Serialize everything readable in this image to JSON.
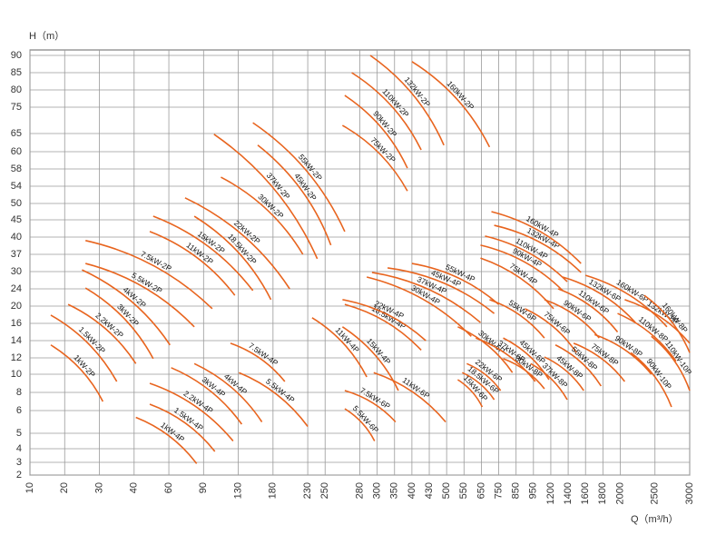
{
  "chart_data": {
    "type": "line",
    "y_label": "H（m）",
    "x_label": "Q（m³/h）",
    "color": "#e8641e",
    "grid": true,
    "xlim": [
      10,
      3000
    ],
    "ylim": [
      2,
      90
    ],
    "xticks": [
      10,
      20,
      30,
      40,
      60,
      90,
      130,
      180,
      230,
      250,
      280,
      300,
      350,
      400,
      430,
      500,
      550,
      650,
      750,
      850,
      950,
      1200,
      1400,
      1600,
      1800,
      2000,
      2500,
      3000
    ],
    "yticks": [
      2,
      3,
      4,
      5,
      6,
      8,
      10,
      12,
      14,
      16,
      20,
      24,
      30,
      37,
      40,
      45,
      50,
      54,
      58,
      60,
      65,
      75,
      80,
      85,
      90
    ],
    "series": [
      {
        "name": "1kW-2P",
        "x": [
          16,
          31
        ],
        "values": [
          13.5,
          7
        ]
      },
      {
        "name": "1.5kW-2P",
        "x": [
          16,
          35
        ],
        "values": [
          17.9,
          9.2
        ]
      },
      {
        "name": "2.2kW-2P",
        "x": [
          21,
          41
        ],
        "values": [
          20.4,
          11.3
        ]
      },
      {
        "name": "3kW-2P",
        "x": [
          26,
          51
        ],
        "values": [
          24.3,
          11.9
        ]
      },
      {
        "name": "4kW-2P",
        "x": [
          25,
          61
        ],
        "values": [
          30.7,
          13.5
        ]
      },
      {
        "name": "5.5kW-2P",
        "x": [
          26,
          82
        ],
        "values": [
          33.3,
          15.6
        ]
      },
      {
        "name": "7.5kW-2P",
        "x": [
          26,
          100
        ],
        "values": [
          39.4,
          19.4
        ]
      },
      {
        "name": "15kW-2P",
        "x": [
          51,
          151
        ],
        "values": [
          46.1,
          23.6
        ]
      },
      {
        "name": "11kW-2P",
        "x": [
          49,
          126
        ],
        "values": [
          41.6,
          22.5
        ]
      },
      {
        "name": "18.5kW-2P",
        "x": [
          82,
          177
        ],
        "values": [
          46.1,
          21.5
        ]
      },
      {
        "name": "22kW-2P",
        "x": [
          74,
          204
        ],
        "values": [
          51.3,
          24
        ]
      },
      {
        "name": "30kW-2P",
        "x": [
          110,
          223
        ],
        "values": [
          56.1,
          37
        ]
      },
      {
        "name": "37kW-2P",
        "x": [
          102,
          241
        ],
        "values": [
          64.8,
          35.2
        ]
      },
      {
        "name": "45kW-2P",
        "x": [
          158,
          255
        ],
        "values": [
          61.8,
          38.6
        ]
      },
      {
        "name": "55kW-2P",
        "x": [
          151,
          267
        ],
        "values": [
          69.1,
          41.6
        ]
      },
      {
        "name": "75kW-2P",
        "x": [
          265,
          387
        ],
        "values": [
          68.1,
          52.9
        ]
      },
      {
        "name": "90kW-2P",
        "x": [
          267,
          387
        ],
        "values": [
          78.4,
          58.1
        ]
      },
      {
        "name": "110kW-2P",
        "x": [
          273,
          416
        ],
        "values": [
          85,
          60.5
        ]
      },
      {
        "name": "132kW-2P",
        "x": [
          292,
          489
        ],
        "values": [
          90,
          61.8
        ]
      },
      {
        "name": "160kW-2P",
        "x": [
          400,
          697
        ],
        "values": [
          88.2,
          61.3
        ]
      },
      {
        "name": "1kW-4P",
        "x": [
          41,
          84
        ],
        "values": [
          5.7,
          2.9
        ]
      },
      {
        "name": "1.5kW-4P",
        "x": [
          49,
          103
        ],
        "values": [
          6.7,
          3.8
        ]
      },
      {
        "name": "2.2kW-4P",
        "x": [
          49,
          124
        ],
        "values": [
          9,
          4.5
        ]
      },
      {
        "name": "3kW-4P",
        "x": [
          62,
          135
        ],
        "values": [
          10.8,
          5.4
        ]
      },
      {
        "name": "4kW-4P",
        "x": [
          82,
          164
        ],
        "values": [
          11.3,
          5.5
        ]
      },
      {
        "name": "7.5kW-4P",
        "x": [
          121,
          197
        ],
        "values": [
          13.7,
          9.2
        ]
      },
      {
        "name": "5.5kW-4P",
        "x": [
          131,
          230
        ],
        "values": [
          10.2,
          5.3
        ]
      },
      {
        "name": "11kW-4P",
        "x": [
          235,
          288
        ],
        "values": [
          17.3,
          9.7
        ]
      },
      {
        "name": "15kW-4P",
        "x": [
          265,
          361
        ],
        "values": [
          15.6,
          8.2
        ]
      },
      {
        "name": "18.5kW-4P",
        "x": [
          267,
          416
        ],
        "values": [
          20.4,
          12.9
        ]
      },
      {
        "name": "22kW-4P",
        "x": [
          265,
          424
        ],
        "values": [
          21.5,
          14
        ]
      },
      {
        "name": "30kW-4P",
        "x": [
          288,
          592
        ],
        "values": [
          28.1,
          14.5
        ]
      },
      {
        "name": "37kW-4P",
        "x": [
          294,
          645
        ],
        "values": [
          29.7,
          16.2
        ]
      },
      {
        "name": "45kW-4P",
        "x": [
          330,
          724
        ],
        "values": [
          31.5,
          18.3
        ]
      },
      {
        "name": "55kW-4P",
        "x": [
          400,
          750
        ],
        "values": [
          33.3,
          20.4
        ]
      },
      {
        "name": "75kW-4P",
        "x": [
          645,
          1232
        ],
        "values": [
          35.5,
          19.4
        ]
      },
      {
        "name": "90kW-4P",
        "x": [
          645,
          1337
        ],
        "values": [
          38.6,
          23.6
        ]
      },
      {
        "name": "110kW-4P",
        "x": [
          671,
          1389
        ],
        "values": [
          40.3,
          26.5
        ]
      },
      {
        "name": "132kW-4P",
        "x": [
          724,
          1548
        ],
        "values": [
          43.4,
          29.7
        ]
      },
      {
        "name": "160kW-4P",
        "x": [
          708,
          1548
        ],
        "values": [
          47.5,
          33.3
        ]
      },
      {
        "name": "5.5kW-6P",
        "x": [
          267,
          297
        ],
        "values": [
          6.2,
          4.5
        ]
      },
      {
        "name": "7.5kW-6P",
        "x": [
          267,
          353
        ],
        "values": [
          8.2,
          5.5
        ]
      },
      {
        "name": "11kW-6P",
        "x": [
          296,
          496
        ],
        "values": [
          10.2,
          5.5
        ]
      },
      {
        "name": "15kW-6P",
        "x": [
          532,
          655
        ],
        "values": [
          9.4,
          6.4
        ]
      },
      {
        "name": "18.5kW-6P",
        "x": [
          545,
          724
        ],
        "values": [
          10.2,
          7.2
        ]
      },
      {
        "name": "22kW-6P",
        "x": [
          566,
          761
        ],
        "values": [
          11.3,
          8.2
        ]
      },
      {
        "name": "30kW-6P",
        "x": [
          532,
          829
        ],
        "values": [
          15.6,
          10.2
        ]
      },
      {
        "name": "37kW-6P",
        "x": [
          618,
          976
        ],
        "values": [
          14.3,
          9.2
        ]
      },
      {
        "name": "45kW-6P",
        "x": [
          776,
          1174
        ],
        "values": [
          14.3,
          9.4
        ]
      },
      {
        "name": "55kW-6P",
        "x": [
          697,
          1108
        ],
        "values": [
          21.5,
          14.3
        ]
      },
      {
        "name": "75kW-6P",
        "x": [
          901,
          1495
        ],
        "values": [
          19.4,
          12.6
        ]
      },
      {
        "name": "90kW-6P",
        "x": [
          1108,
          1758
        ],
        "values": [
          21.5,
          14.3
        ]
      },
      {
        "name": "110kW-6P",
        "x": [
          1284,
          1969
        ],
        "values": [
          24,
          15
        ]
      },
      {
        "name": "132kW-6P",
        "x": [
          1337,
          2218
        ],
        "values": [
          28.1,
          16.2
        ]
      },
      {
        "name": "160kW-6P",
        "x": [
          1600,
          2672
        ],
        "values": [
          28.7,
          15.6
        ]
      },
      {
        "name": "30kW-8P",
        "x": [
          776,
          1108
        ],
        "values": [
          11.9,
          8.4
        ]
      },
      {
        "name": "37kW-8P",
        "x": [
          934,
          1389
        ],
        "values": [
          11.3,
          7.2
        ]
      },
      {
        "name": "45kW-8P",
        "x": [
          1108,
          1579
        ],
        "values": [
          12.1,
          8.2
        ]
      },
      {
        "name": "55kW-8P",
        "x": [
          1253,
          1779
        ],
        "values": [
          13.5,
          8.7
        ]
      },
      {
        "name": "75kW-8P",
        "x": [
          1463,
          2064
        ],
        "values": [
          13.7,
          9.2
        ]
      },
      {
        "name": "90kW-8P",
        "x": [
          1705,
          2448
        ],
        "values": [
          14.7,
          10
        ]
      },
      {
        "name": "110kW-8P",
        "x": [
          1969,
          2804
        ],
        "values": [
          18.3,
          11.6
        ]
      },
      {
        "name": "132kW-8P",
        "x": [
          2064,
          3000
        ],
        "values": [
          21.5,
          13.7
        ]
      },
      {
        "name": "160kW-8P",
        "x": [
          2346,
          3000
        ],
        "values": [
          22.5,
          12.6
        ]
      },
      {
        "name": "90kW-10P",
        "x": [
          2154,
          2738
        ],
        "values": [
          12.6,
          6.4
        ]
      },
      {
        "name": "110kW-10P",
        "x": [
          2448,
          3000
        ],
        "values": [
          14.5,
          8.2
        ]
      }
    ]
  }
}
